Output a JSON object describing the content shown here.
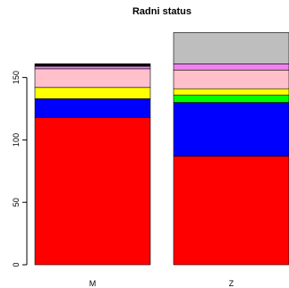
{
  "chart_data": {
    "type": "bar",
    "stacked": true,
    "title": "Radni status",
    "xlabel": "",
    "ylabel": "",
    "categories": [
      "M",
      "Z"
    ],
    "ylim": [
      0,
      187
    ],
    "yticks": [
      0,
      50,
      100,
      150
    ],
    "grid": false,
    "legend": "none",
    "series": [
      {
        "color": "#ff0000",
        "values": [
          118,
          87
        ]
      },
      {
        "color": "#0000ff",
        "values": [
          15,
          43
        ]
      },
      {
        "color": "#00ff00",
        "values": [
          0,
          6
        ]
      },
      {
        "color": "#ffff00",
        "values": [
          9,
          5
        ]
      },
      {
        "color": "#ffc0cb",
        "values": [
          15,
          15
        ]
      },
      {
        "color": "#ee82ee",
        "values": [
          2,
          5
        ]
      },
      {
        "color": "#000000",
        "values": [
          2,
          0
        ]
      },
      {
        "color": "#bebebe",
        "values": [
          0,
          25
        ]
      }
    ]
  }
}
